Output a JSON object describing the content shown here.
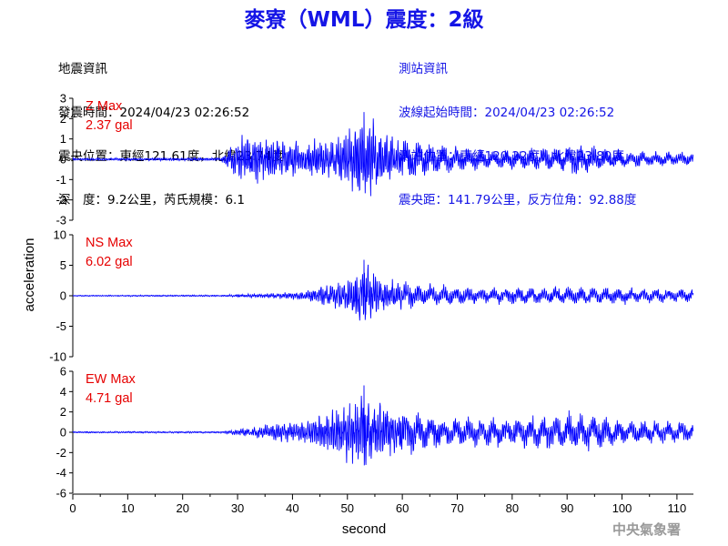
{
  "title": "麥寮（WML）震度：2級",
  "earthquake_info": {
    "heading": "地震資訊",
    "time": "發震時間：2024/04/23 02:26:52",
    "epicenter": "震央位置：東經121.61度，北緯23.74度",
    "depth_magnitude": "深　度：9.2公里，芮氏規模：6.1"
  },
  "station_info": {
    "heading": "測站資訊",
    "wave_start": "波線起始時間：2024/04/23 02:26:52",
    "location": "測站位置：東經120.22度，北緯23.80度",
    "distance_azimuth": "震央距：141.79公里，反方位角：92.88度"
  },
  "credit": "中央氣象署",
  "colors": {
    "title": "#1515e6",
    "trace": "#0000ff",
    "annotation": "#e60000"
  },
  "chart_data": [
    {
      "type": "line",
      "component": "Z",
      "annotation": [
        "Z Max",
        "2.37 gal"
      ],
      "peak": 2.37,
      "ylim": [
        -3,
        3
      ],
      "yticks": [
        -3,
        -2,
        -1,
        0,
        1,
        2,
        3
      ],
      "xlim": [
        0,
        113
      ],
      "envelope": [
        [
          0,
          0.06
        ],
        [
          27,
          0.08
        ],
        [
          29,
          0.9
        ],
        [
          30,
          1.4
        ],
        [
          36,
          1.2
        ],
        [
          42,
          1.0
        ],
        [
          47,
          1.2
        ],
        [
          50,
          1.6
        ],
        [
          53,
          2.37
        ],
        [
          56,
          1.8
        ],
        [
          60,
          1.2
        ],
        [
          65,
          0.8
        ],
        [
          75,
          0.45
        ],
        [
          88,
          0.6
        ],
        [
          92,
          0.8
        ],
        [
          98,
          0.45
        ],
        [
          113,
          0.3
        ]
      ]
    },
    {
      "type": "line",
      "component": "NS",
      "annotation": [
        "NS Max",
        "6.02 gal"
      ],
      "peak": 6.02,
      "ylim": [
        -10,
        10
      ],
      "yticks": [
        -10,
        -5,
        0,
        5,
        10
      ],
      "xlim": [
        0,
        113
      ],
      "envelope": [
        [
          0,
          0.1
        ],
        [
          27,
          0.15
        ],
        [
          35,
          0.4
        ],
        [
          42,
          0.8
        ],
        [
          47,
          2.2
        ],
        [
          50,
          3.2
        ],
        [
          53,
          6.02
        ],
        [
          56,
          3.4
        ],
        [
          60,
          2.4
        ],
        [
          65,
          1.8
        ],
        [
          75,
          1.3
        ],
        [
          90,
          1.4
        ],
        [
          113,
          1.1
        ]
      ]
    },
    {
      "type": "line",
      "component": "EW",
      "annotation": [
        "EW Max",
        "4.71 gal"
      ],
      "peak": 4.71,
      "ylim": [
        -6,
        6
      ],
      "yticks": [
        -6,
        -4,
        -2,
        0,
        2,
        4,
        6
      ],
      "xlim": [
        0,
        113
      ],
      "envelope": [
        [
          0,
          0.08
        ],
        [
          27,
          0.1
        ],
        [
          32,
          0.5
        ],
        [
          42,
          1.4
        ],
        [
          48,
          2.5
        ],
        [
          51,
          3.6
        ],
        [
          53,
          4.71
        ],
        [
          57,
          3.2
        ],
        [
          62,
          2.0
        ],
        [
          68,
          1.4
        ],
        [
          80,
          1.4
        ],
        [
          90,
          1.9
        ],
        [
          95,
          1.8
        ],
        [
          100,
          1.2
        ],
        [
          113,
          1.0
        ]
      ]
    }
  ],
  "xaxis": {
    "label": "second",
    "ticks": [
      0,
      10,
      20,
      30,
      40,
      50,
      60,
      70,
      80,
      90,
      100,
      110
    ]
  },
  "ylabel": "acceleration"
}
